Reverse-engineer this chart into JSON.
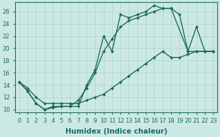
{
  "bg_color": "#cce8e4",
  "grid_color": "#b0d4cf",
  "line_color": "#1a6b5a",
  "line_width": 1.0,
  "marker": "D",
  "marker_size": 2.5,
  "xlabel": "Humidex (Indice chaleur)",
  "xlabel_fontsize": 7.5,
  "tick_fontsize": 6.0,
  "xlim": [
    -0.5,
    23.5
  ],
  "ylim": [
    9.5,
    27.5
  ],
  "yticks": [
    10,
    12,
    14,
    16,
    18,
    20,
    22,
    24,
    26
  ],
  "xticks": [
    0,
    1,
    2,
    3,
    4,
    5,
    6,
    7,
    8,
    9,
    10,
    11,
    12,
    13,
    14,
    15,
    16,
    17,
    18,
    19,
    20,
    21,
    22,
    23
  ],
  "line1_x": [
    0,
    1,
    2,
    3,
    4,
    5,
    6,
    7,
    8,
    9,
    10,
    11,
    12,
    13,
    14,
    15,
    16,
    17,
    18,
    19,
    20,
    21,
    22,
    23
  ],
  "line1_y": [
    14.5,
    13.0,
    11.0,
    10.0,
    10.3,
    10.5,
    10.5,
    10.5,
    14.0,
    16.5,
    22.0,
    19.5,
    25.5,
    25.0,
    25.5,
    26.0,
    27.0,
    26.5,
    26.5,
    25.5,
    19.5,
    23.5,
    19.5,
    19.5
  ],
  "line2_x": [
    0,
    1,
    2,
    3,
    4,
    5,
    6,
    7,
    8,
    9,
    10,
    11,
    12,
    13,
    14,
    15,
    16,
    17,
    18,
    20,
    21,
    22,
    23
  ],
  "line2_y": [
    14.5,
    13.0,
    11.0,
    10.0,
    10.5,
    10.5,
    10.5,
    11.5,
    13.5,
    16.0,
    19.5,
    21.5,
    23.5,
    24.5,
    25.0,
    25.5,
    26.0,
    26.5,
    26.5,
    19.5,
    19.5,
    19.5,
    19.5
  ],
  "line3_x": [
    0,
    1,
    2,
    3,
    4,
    5,
    6,
    7,
    8,
    9,
    10,
    11,
    12,
    13,
    14,
    15,
    16,
    17,
    18,
    19,
    20,
    21,
    22,
    23
  ],
  "line3_y": [
    14.5,
    13.5,
    12.0,
    11.0,
    11.0,
    11.0,
    11.0,
    11.0,
    11.5,
    12.0,
    12.5,
    13.5,
    14.5,
    15.5,
    16.5,
    17.5,
    18.5,
    19.5,
    18.5,
    18.5,
    19.0,
    19.5,
    19.5,
    19.5
  ]
}
